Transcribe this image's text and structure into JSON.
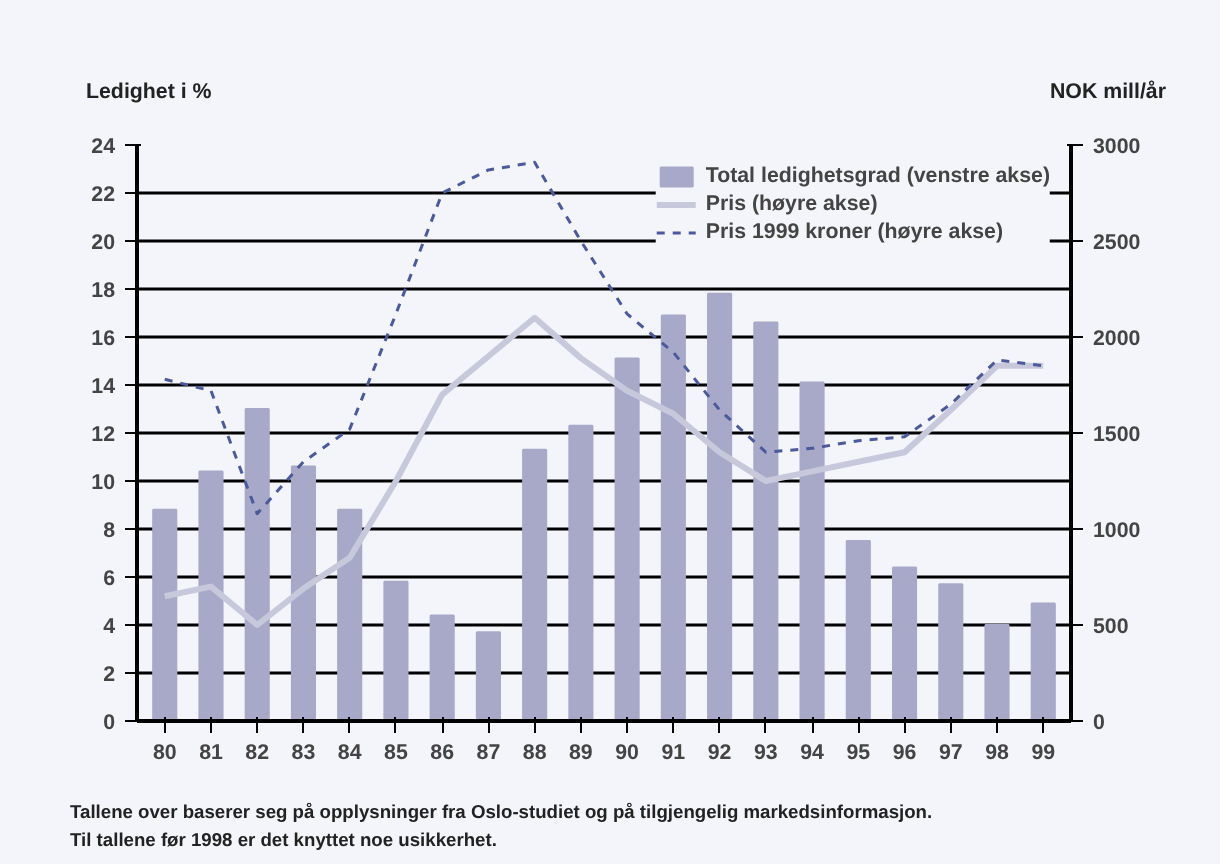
{
  "chart_data": {
    "type": "bar",
    "categories": [
      "80",
      "81",
      "82",
      "83",
      "84",
      "85",
      "86",
      "87",
      "88",
      "89",
      "90",
      "91",
      "92",
      "93",
      "94",
      "95",
      "96",
      "97",
      "98",
      "99"
    ],
    "series": [
      {
        "name": "Total ledighetsgrad (venstre akse)",
        "color": "#a8a8c8",
        "values": [
          8.8,
          10.4,
          13.0,
          10.6,
          8.8,
          5.8,
          4.4,
          3.7,
          11.3,
          12.3,
          15.1,
          16.9,
          17.8,
          16.6,
          14.1,
          7.5,
          6.4,
          5.7,
          4.0,
          4.9
        ]
      },
      {
        "name": "Pris (høyre akse)",
        "type": "line",
        "axis": "y2",
        "color": "#c8c8dc",
        "line_style": "solid",
        "values": [
          650,
          700,
          500,
          690,
          850,
          1250,
          1700,
          1900,
          2100,
          1890,
          1720,
          1600,
          1400,
          1250,
          1300,
          1350,
          1400,
          1620,
          1850,
          1850
        ]
      },
      {
        "name": "Pris 1999 kroner (høyre akse)",
        "type": "line",
        "axis": "y2",
        "color": "#4a5a9a",
        "line_style": "dashed",
        "values": [
          1780,
          1720,
          1080,
          1350,
          1520,
          2120,
          2750,
          2870,
          2910,
          2500,
          2120,
          1920,
          1620,
          1400,
          1420,
          1460,
          1480,
          1650,
          1880,
          1850
        ]
      }
    ],
    "ylabel": "Ledighet i %",
    "y2label": "NOK mill/år",
    "ylim": [
      0,
      24
    ],
    "yticks": [
      0,
      2,
      4,
      6,
      8,
      10,
      12,
      14,
      16,
      18,
      20,
      22,
      24
    ],
    "y2lim": [
      0,
      3000
    ],
    "y2ticks": [
      0,
      500,
      1000,
      1500,
      2000,
      2500,
      3000
    ],
    "grid": "y",
    "legend": "top right",
    "annotations": [
      "Tallene over baserer seg på opplysninger fra Oslo-studiet og på tilgjengelig markedsinformasjon.",
      "Til tallene før 1998 er det knyttet noe usikkerhet."
    ]
  }
}
